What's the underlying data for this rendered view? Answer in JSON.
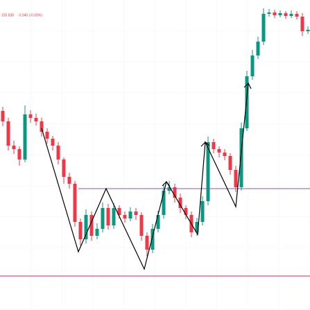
{
  "chart_data": {
    "type": "candlestick",
    "price_label": "155.838",
    "change_label": "-0.040 (-0.03%)",
    "up_color": "#089981",
    "down_color": "#f23645",
    "ylim": [
      151.8,
      156.27
    ],
    "open": [
      154.67,
      154.52,
      154.17,
      154.12,
      153.97,
      154.62,
      154.57,
      154.52,
      154.37,
      154.27,
      154.17,
      153.97,
      153.72,
      153.62,
      153.07,
      152.82,
      153.17,
      152.87,
      152.97,
      153.27,
      153.02,
      153.27,
      153.17,
      153.12,
      153.22,
      153.17,
      152.87,
      152.67,
      152.97,
      153.17,
      153.52,
      153.57,
      153.42,
      153.27,
      153.17,
      152.92,
      153.07,
      153.37,
      154.22,
      154.12,
      154.07,
      154.02,
      153.82,
      153.57,
      154.42,
      155.17,
      155.47,
      155.67,
      156.07,
      156.09,
      156.05,
      156.08,
      156.04,
      156.07,
      156.03,
      155.82
    ],
    "high": [
      154.73,
      154.57,
      154.24,
      154.16,
      154.75,
      154.68,
      154.63,
      154.57,
      154.42,
      154.31,
      154.22,
      154.0,
      153.78,
      153.66,
      153.12,
      153.25,
      153.22,
      153.05,
      153.35,
      153.33,
      153.34,
      153.31,
      153.22,
      153.28,
      153.27,
      153.21,
      152.92,
      153.04,
      153.23,
      153.62,
      153.66,
      153.62,
      153.48,
      153.31,
      153.22,
      153.13,
      153.44,
      154.3,
      154.27,
      154.16,
      154.12,
      154.06,
      153.88,
      154.5,
      155.25,
      155.55,
      155.74,
      156.15,
      156.14,
      156.13,
      156.12,
      156.11,
      156.12,
      156.11,
      156.08,
      155.89
    ],
    "low": [
      154.45,
      154.1,
      154.05,
      153.88,
      153.93,
      154.5,
      154.46,
      154.3,
      154.2,
      154.1,
      153.9,
      153.62,
      153.55,
      153.0,
      152.73,
      152.76,
      152.8,
      152.82,
      152.92,
      152.96,
      152.97,
      153.12,
      153.06,
      153.08,
      153.1,
      152.8,
      152.57,
      152.62,
      152.92,
      153.12,
      153.47,
      153.35,
      153.2,
      153.11,
      152.85,
      152.87,
      153.02,
      153.31,
      154.06,
      154.0,
      153.96,
      153.75,
      153.5,
      153.52,
      154.38,
      155.12,
      155.42,
      155.62,
      156.03,
      156.01,
      156.02,
      156.0,
      156.01,
      155.99,
      155.75,
      155.78
    ],
    "close": [
      154.52,
      154.17,
      154.12,
      153.97,
      154.62,
      154.57,
      154.52,
      154.37,
      154.27,
      154.17,
      153.97,
      153.72,
      153.62,
      153.07,
      152.82,
      153.17,
      152.87,
      152.97,
      153.27,
      153.02,
      153.27,
      153.17,
      153.12,
      153.22,
      153.17,
      152.87,
      152.67,
      152.97,
      153.17,
      153.52,
      153.57,
      153.42,
      153.27,
      153.17,
      152.92,
      153.07,
      153.37,
      154.22,
      154.12,
      154.07,
      154.02,
      153.82,
      153.57,
      154.42,
      155.17,
      155.47,
      155.67,
      156.07,
      156.09,
      156.05,
      156.08,
      156.04,
      156.07,
      156.03,
      155.82,
      155.84
    ]
  }
}
